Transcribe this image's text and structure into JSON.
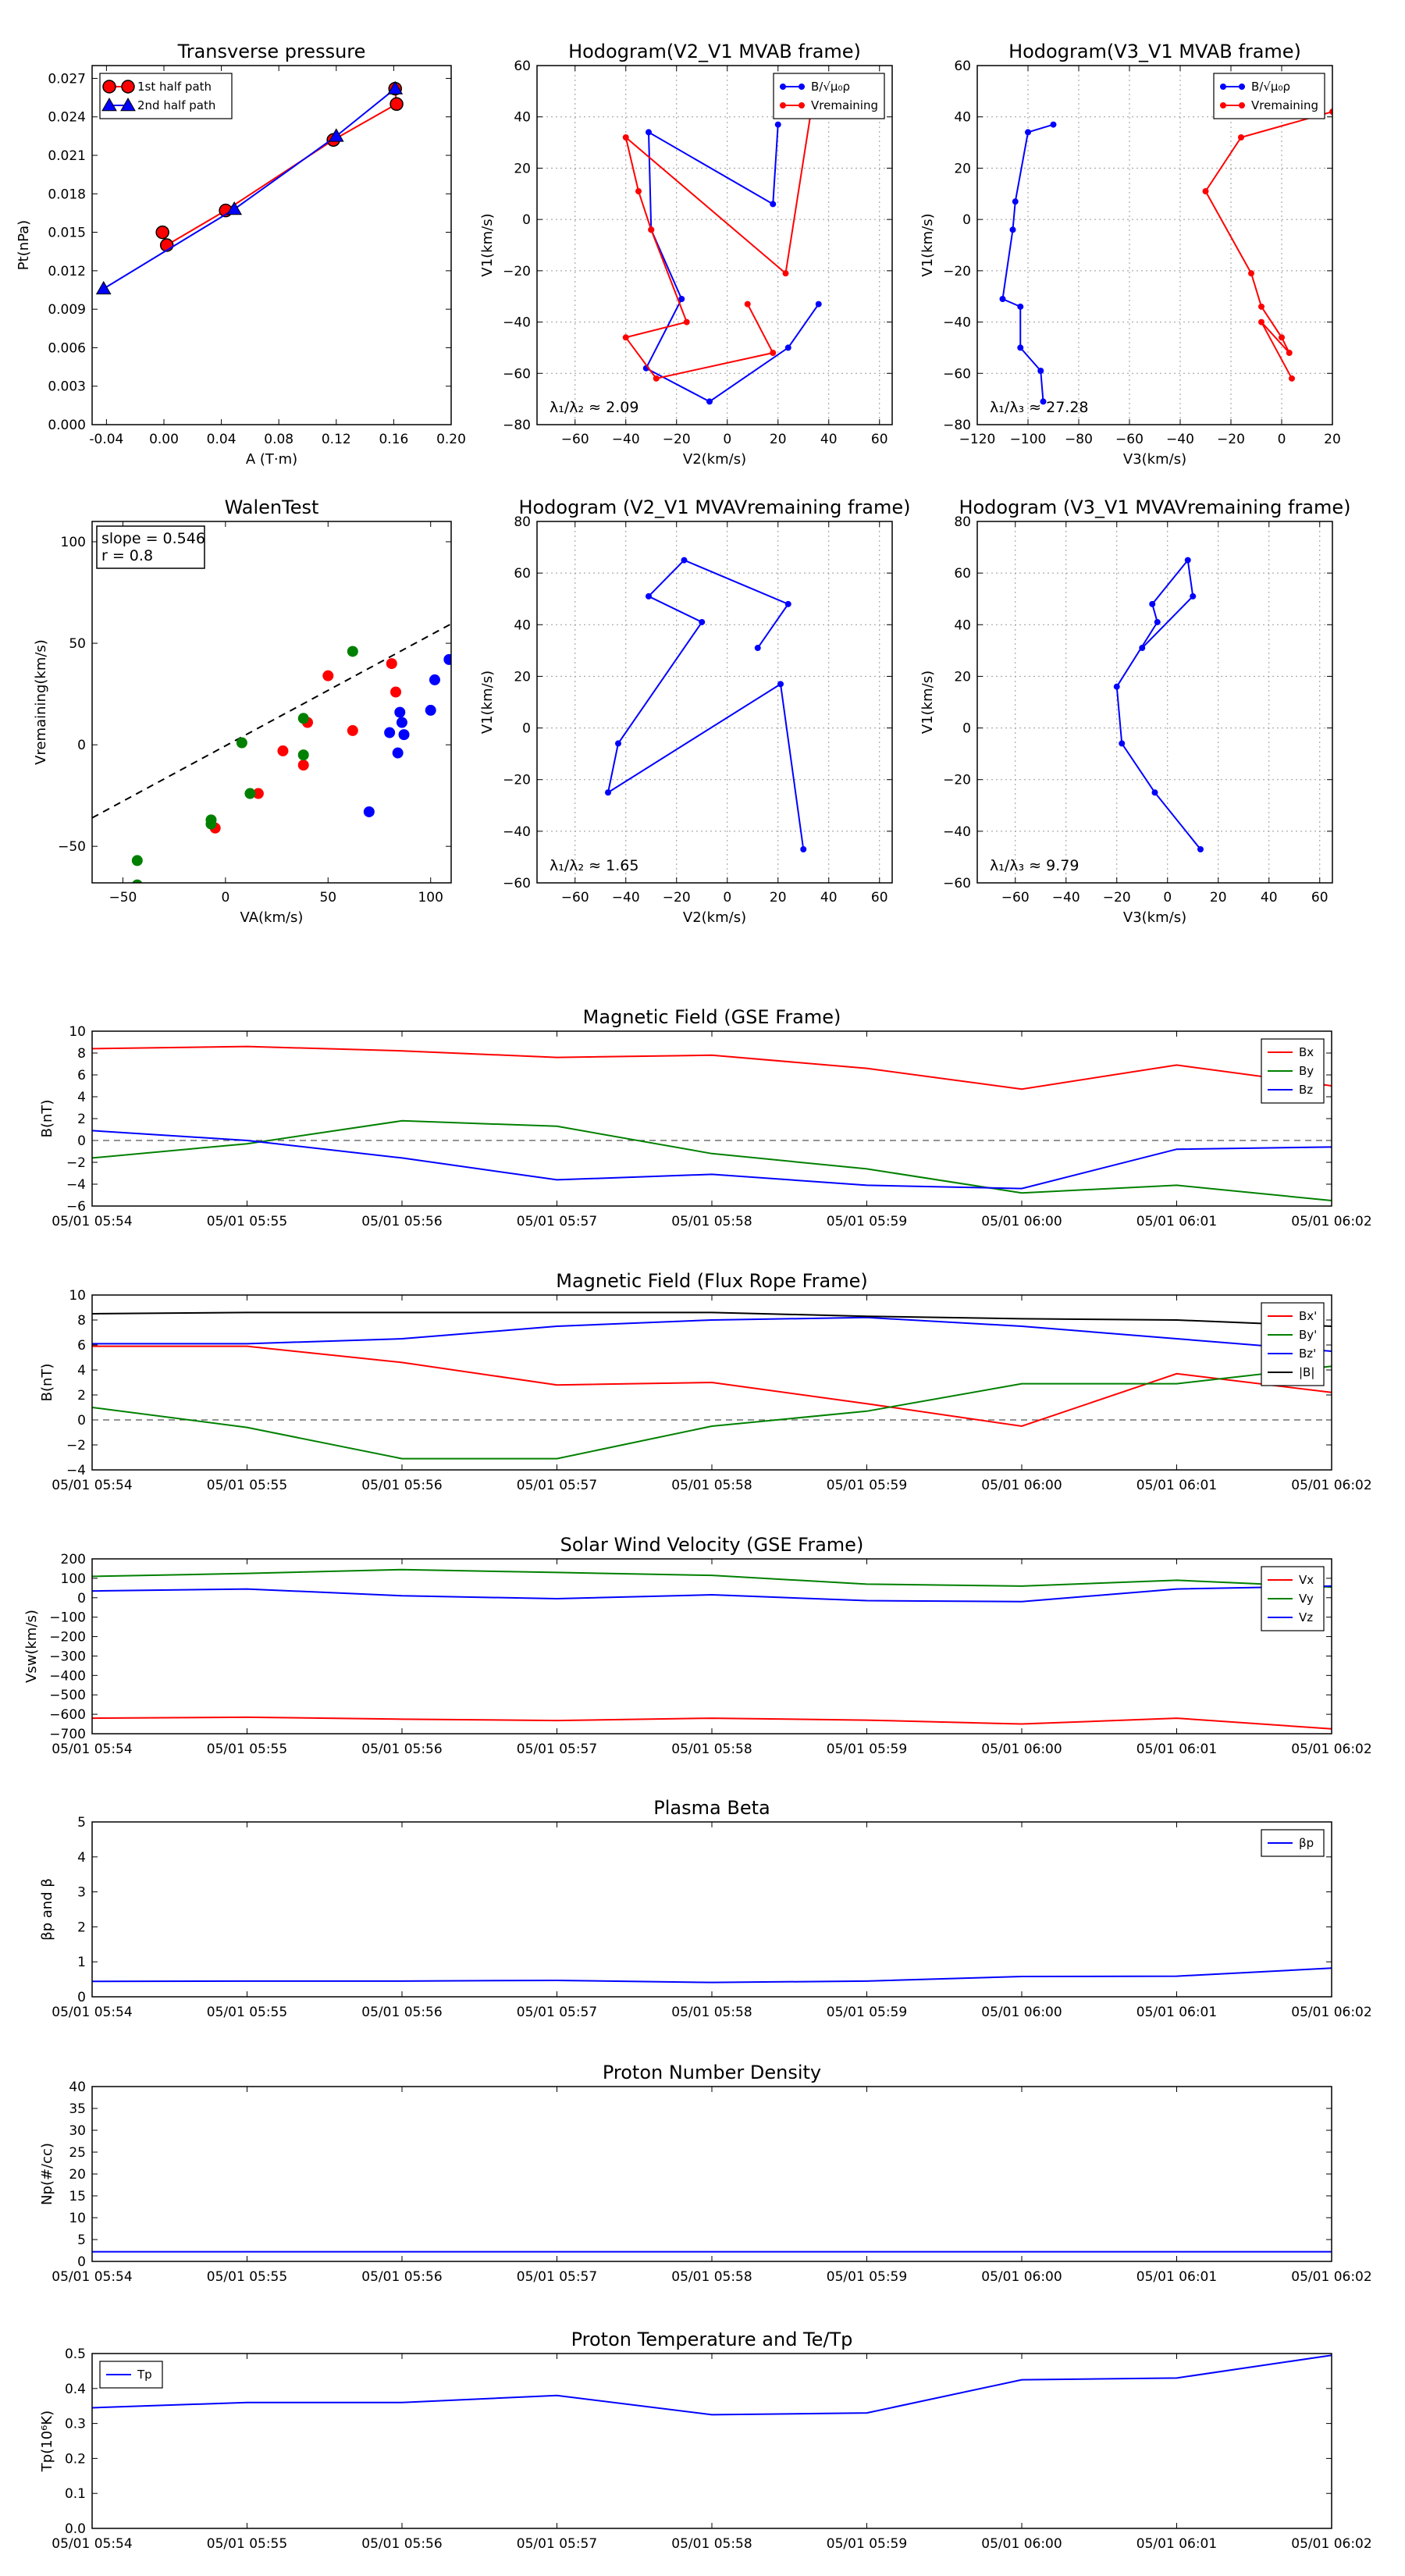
{
  "chart_data": [
    {
      "id": "tp",
      "type": "line",
      "title": "Transverse pressure",
      "xlabel": "A (T·m)",
      "ylabel": "Pt(nPa)",
      "xlim": [
        -0.05,
        0.2
      ],
      "ylim": [
        0,
        0.028
      ],
      "xticks": [
        -0.04,
        0.0,
        0.04,
        0.08,
        0.12,
        0.16,
        0.2
      ],
      "xticklabels": [
        "-0.04",
        "0.00",
        "0.04",
        "0.08",
        "0.12",
        "0.16",
        "0.20"
      ],
      "yticks": [
        0,
        0.003,
        0.006,
        0.009,
        0.012,
        0.015,
        0.018,
        0.021,
        0.024,
        0.027
      ],
      "yticklabels": [
        "0.000",
        "0.003",
        "0.006",
        "0.009",
        "0.012",
        "0.015",
        "0.018",
        "0.021",
        "0.024",
        "0.027"
      ],
      "grid": false,
      "legend": "top-left",
      "series": [
        {
          "name": "1st half path",
          "color": "#ff0000",
          "marker": "circle",
          "x": [
            -0.001,
            0.002,
            0.043,
            0.118,
            0.162,
            0.161
          ],
          "y": [
            0.015,
            0.014,
            0.0167,
            0.0222,
            0.025,
            0.0262
          ]
        },
        {
          "name": "2nd half path",
          "color": "#0000ff",
          "marker": "triangle",
          "x": [
            -0.042,
            0.049,
            0.12,
            0.161
          ],
          "y": [
            0.0106,
            0.0168,
            0.0225,
            0.0262
          ]
        }
      ]
    },
    {
      "id": "h1",
      "type": "line",
      "title": "Hodogram(V2_V1 MVAB frame)",
      "xlabel": "V2(km/s)",
      "ylabel": "V1(km/s)",
      "xlim": [
        -75,
        65
      ],
      "ylim": [
        -80,
        60
      ],
      "xticks": [
        -60,
        -40,
        -20,
        0,
        20,
        40,
        60
      ],
      "xticklabels": [
        "−60",
        "−40",
        "−20",
        "0",
        "20",
        "40",
        "60"
      ],
      "yticks": [
        -80,
        -60,
        -40,
        -20,
        0,
        20,
        40,
        60
      ],
      "yticklabels": [
        "−80",
        "−60",
        "−40",
        "−20",
        "0",
        "20",
        "40",
        "60"
      ],
      "grid": true,
      "legend": "top-right",
      "annotation": "λ₁/λ₂ ≈ 2.09",
      "series": [
        {
          "name": "B/√μ₀ρ",
          "color": "#0000ff",
          "marker": "dot",
          "x": [
            20,
            18,
            -31,
            -30,
            -18,
            -32,
            -7,
            24,
            36
          ],
          "y": [
            37,
            6,
            34,
            -4,
            -31,
            -58,
            -71,
            -50,
            -33
          ]
        },
        {
          "name": "Vremaining",
          "color": "#ff0000",
          "marker": "dot",
          "x": [
            33,
            23,
            -40,
            -35,
            -30,
            -16,
            -40,
            -28,
            18,
            8
          ],
          "y": [
            42,
            -21,
            32,
            11,
            -4,
            -40,
            -46,
            -62,
            -52,
            -33
          ]
        }
      ]
    },
    {
      "id": "h2",
      "type": "line",
      "title": "Hodogram(V3_V1 MVAB frame)",
      "xlabel": "V3(km/s)",
      "ylabel": "V1(km/s)",
      "xlim": [
        -120,
        20
      ],
      "ylim": [
        -80,
        60
      ],
      "xticks": [
        -120,
        -100,
        -80,
        -60,
        -40,
        -20,
        0,
        20
      ],
      "xticklabels": [
        "−120",
        "−100",
        "−80",
        "−60",
        "−40",
        "−20",
        "0",
        "20"
      ],
      "yticks": [
        -80,
        -60,
        -40,
        -20,
        0,
        20,
        40,
        60
      ],
      "yticklabels": [
        "−80",
        "−60",
        "−40",
        "−20",
        "0",
        "20",
        "40",
        "60"
      ],
      "grid": true,
      "legend": "top-right",
      "annotation": "λ₁/λ₃ ≈ 27.28",
      "series": [
        {
          "name": "B/√μ₀ρ",
          "color": "#0000ff",
          "marker": "dot",
          "x": [
            -90,
            -100,
            -105,
            -106,
            -110,
            -103,
            -103,
            -95,
            -94
          ],
          "y": [
            37,
            34,
            7,
            -4,
            -31,
            -34,
            -50,
            -59,
            -71
          ]
        },
        {
          "name": "Vremaining",
          "color": "#ff0000",
          "marker": "dot",
          "x": [
            20,
            -16,
            -30,
            -12,
            -8,
            0,
            3,
            -8,
            4
          ],
          "y": [
            42,
            32,
            11,
            -21,
            -34,
            -46,
            -52,
            -40,
            -62
          ]
        }
      ]
    },
    {
      "id": "walen",
      "type": "scatter",
      "title": "WalenTest",
      "xlabel": "VA(km/s)",
      "ylabel": "Vremaining(km/s)",
      "xlim": [
        -65,
        110
      ],
      "ylim": [
        -68,
        110
      ],
      "xticks": [
        -50,
        0,
        50,
        100
      ],
      "xticklabels": [
        "−50",
        "0",
        "50",
        "100"
      ],
      "yticks": [
        -50,
        0,
        50,
        100
      ],
      "yticklabels": [
        "−50",
        "0",
        "50",
        "100"
      ],
      "grid": false,
      "annotation_lines": [
        "slope = 0.546",
        "r = 0.8"
      ],
      "fit": {
        "slope": 0.546,
        "intercept": -0.5
      },
      "series": [
        {
          "color": "#0000ff",
          "x": [
            109,
            102,
            86,
            87,
            84,
            80,
            85,
            100,
            70
          ],
          "y": [
            42,
            32,
            11,
            5,
            -4,
            6,
            16,
            17,
            -33
          ]
        },
        {
          "color": "#ff0000",
          "x": [
            81,
            83,
            50,
            40,
            62,
            38,
            28,
            16,
            -5
          ],
          "y": [
            40,
            26,
            34,
            11,
            7,
            -10,
            -3,
            -24,
            -41
          ]
        },
        {
          "color": "#008000",
          "x": [
            62,
            38,
            38,
            8,
            12,
            -7,
            -7,
            -43,
            -43
          ],
          "y": [
            46,
            13,
            -5,
            1,
            -24,
            -37,
            -39,
            -57,
            -69
          ]
        }
      ]
    },
    {
      "id": "h3",
      "type": "line",
      "title": "Hodogram (V2_V1 MVAVremaining frame)",
      "xlabel": "V2(km/s)",
      "ylabel": "V1(km/s)",
      "xlim": [
        -75,
        65
      ],
      "ylim": [
        -60,
        80
      ],
      "xticks": [
        -60,
        -40,
        -20,
        0,
        20,
        40,
        60
      ],
      "xticklabels": [
        "−60",
        "−40",
        "−20",
        "0",
        "20",
        "40",
        "60"
      ],
      "yticks": [
        -60,
        -40,
        -20,
        0,
        20,
        40,
        60,
        80
      ],
      "yticklabels": [
        "−60",
        "−40",
        "−20",
        "0",
        "20",
        "40",
        "60",
        "80"
      ],
      "grid": true,
      "annotation": "λ₁/λ₂ ≈ 1.65",
      "series": [
        {
          "color": "#0000ff",
          "marker": "dot",
          "x": [
            12,
            24,
            -17,
            -31,
            -10,
            -43,
            -47,
            21,
            30
          ],
          "y": [
            31,
            48,
            65,
            51,
            41,
            -6,
            -25,
            17,
            -47
          ]
        }
      ]
    },
    {
      "id": "h4",
      "type": "line",
      "title": "Hodogram (V3_V1 MVAVremaining frame)",
      "xlabel": "V3(km/s)",
      "ylabel": "V1(km/s)",
      "xlim": [
        -75,
        65
      ],
      "ylim": [
        -60,
        80
      ],
      "xticks": [
        -60,
        -40,
        -20,
        0,
        20,
        40,
        60
      ],
      "xticklabels": [
        "−60",
        "−40",
        "−20",
        "0",
        "20",
        "40",
        "60"
      ],
      "yticks": [
        -60,
        -40,
        -20,
        0,
        20,
        40,
        60,
        80
      ],
      "yticklabels": [
        "−60",
        "−40",
        "−20",
        "0",
        "20",
        "40",
        "60",
        "80"
      ],
      "grid": true,
      "annotation": "λ₁/λ₃ ≈ 9.79",
      "series": [
        {
          "color": "#0000ff",
          "marker": "dot",
          "x": [
            -10,
            10,
            8,
            -6,
            -4,
            -20,
            -18,
            -5,
            13
          ],
          "y": [
            31,
            51,
            65,
            48,
            41,
            16,
            -6,
            -25,
            -47
          ]
        }
      ]
    },
    {
      "id": "mag_gse",
      "type": "line",
      "title": "Magnetic Field (GSE Frame)",
      "xlabel": "",
      "ylabel": "B(nT)",
      "categories": [
        "05/01 05:54",
        "05/01 05:55",
        "05/01 05:56",
        "05/01 05:57",
        "05/01 05:58",
        "05/01 05:59",
        "05/01 06:00",
        "05/01 06:01",
        "05/01 06:02"
      ],
      "ylim": [
        -6,
        10
      ],
      "yticks": [
        -6,
        -4,
        -2,
        0,
        2,
        4,
        6,
        8,
        10
      ],
      "yticklabels": [
        "−6",
        "−4",
        "−2",
        "0",
        "2",
        "4",
        "6",
        "8",
        "10"
      ],
      "zero_line": true,
      "legend": "top-right",
      "series": [
        {
          "name": "Bx",
          "color": "#ff0000",
          "values": [
            8.4,
            8.6,
            8.2,
            7.6,
            7.8,
            6.6,
            4.7,
            6.9,
            5.0
          ]
        },
        {
          "name": "By",
          "color": "#008000",
          "values": [
            -1.6,
            -0.3,
            1.8,
            1.3,
            -1.2,
            -2.6,
            -4.8,
            -4.1,
            -5.5
          ]
        },
        {
          "name": "Bz",
          "color": "#0000ff",
          "values": [
            0.9,
            0.0,
            -1.6,
            -3.6,
            -3.1,
            -4.1,
            -4.4,
            -0.8,
            -0.6
          ]
        }
      ]
    },
    {
      "id": "mag_fr",
      "type": "line",
      "title": "Magnetic Field (Flux Rope Frame)",
      "xlabel": "",
      "ylabel": "B(nT)",
      "categories": [
        "05/01 05:54",
        "05/01 05:55",
        "05/01 05:56",
        "05/01 05:57",
        "05/01 05:58",
        "05/01 05:59",
        "05/01 06:00",
        "05/01 06:01",
        "05/01 06:02"
      ],
      "ylim": [
        -4,
        10
      ],
      "yticks": [
        -4,
        -2,
        0,
        2,
        4,
        6,
        8,
        10
      ],
      "yticklabels": [
        "−4",
        "−2",
        "0",
        "2",
        "4",
        "6",
        "8",
        "10"
      ],
      "zero_line": true,
      "legend": "top-right",
      "series": [
        {
          "name": "Bx'",
          "color": "#ff0000",
          "values": [
            5.9,
            5.9,
            4.6,
            2.8,
            3.0,
            1.3,
            -0.5,
            3.7,
            2.2
          ]
        },
        {
          "name": "By'",
          "color": "#008000",
          "values": [
            1.0,
            -0.6,
            -3.1,
            -3.1,
            -0.5,
            0.7,
            2.9,
            2.9,
            4.3
          ]
        },
        {
          "name": "Bz'",
          "color": "#0000ff",
          "values": [
            6.1,
            6.1,
            6.5,
            7.5,
            8.0,
            8.2,
            7.5,
            6.5,
            5.5
          ]
        },
        {
          "name": "|B|",
          "color": "#000000",
          "values": [
            8.5,
            8.6,
            8.6,
            8.6,
            8.6,
            8.3,
            8.1,
            8.0,
            7.5
          ]
        }
      ]
    },
    {
      "id": "vsw",
      "type": "line",
      "title": "Solar Wind Velocity (GSE Frame)",
      "xlabel": "",
      "ylabel": "Vsw(km/s)",
      "categories": [
        "05/01 05:54",
        "05/01 05:55",
        "05/01 05:56",
        "05/01 05:57",
        "05/01 05:58",
        "05/01 05:59",
        "05/01 06:00",
        "05/01 06:01",
        "05/01 06:02"
      ],
      "ylim": [
        -700,
        200
      ],
      "yticks": [
        -700,
        -600,
        -500,
        -400,
        -300,
        -200,
        -100,
        0,
        100,
        200
      ],
      "yticklabels": [
        "−700",
        "−600",
        "−500",
        "−400",
        "−300",
        "−200",
        "−100",
        "0",
        "100",
        "200"
      ],
      "legend": "top-right",
      "series": [
        {
          "name": "Vx",
          "color": "#ff0000",
          "values": [
            -620,
            -615,
            -625,
            -632,
            -620,
            -630,
            -650,
            -620,
            -675
          ]
        },
        {
          "name": "Vy",
          "color": "#008000",
          "values": [
            110,
            125,
            145,
            130,
            115,
            70,
            60,
            90,
            55
          ]
        },
        {
          "name": "Vz",
          "color": "#0000ff",
          "values": [
            35,
            45,
            10,
            -5,
            15,
            -15,
            -20,
            45,
            60
          ]
        }
      ]
    },
    {
      "id": "beta",
      "type": "line",
      "title": "Plasma Beta",
      "xlabel": "",
      "ylabel": "βp and β",
      "categories": [
        "05/01 05:54",
        "05/01 05:55",
        "05/01 05:56",
        "05/01 05:57",
        "05/01 05:58",
        "05/01 05:59",
        "05/01 06:00",
        "05/01 06:01",
        "05/01 06:02"
      ],
      "ylim": [
        0,
        5
      ],
      "yticks": [
        0,
        1,
        2,
        3,
        4,
        5
      ],
      "yticklabels": [
        "0",
        "1",
        "2",
        "3",
        "4",
        "5"
      ],
      "legend": "top-right",
      "series": [
        {
          "name": "βp",
          "color": "#0000ff",
          "values": [
            0.44,
            0.45,
            0.45,
            0.47,
            0.41,
            0.45,
            0.58,
            0.59,
            0.82
          ]
        }
      ]
    },
    {
      "id": "np",
      "type": "line",
      "title": "Proton Number Density",
      "xlabel": "",
      "ylabel": "Np(#/cc)",
      "categories": [
        "05/01 05:54",
        "05/01 05:55",
        "05/01 05:56",
        "05/01 05:57",
        "05/01 05:58",
        "05/01 05:59",
        "05/01 06:00",
        "05/01 06:01",
        "05/01 06:02"
      ],
      "ylim": [
        0,
        40
      ],
      "yticks": [
        0,
        5,
        10,
        15,
        20,
        25,
        30,
        35,
        40
      ],
      "yticklabels": [
        "0",
        "5",
        "10",
        "15",
        "20",
        "25",
        "30",
        "35",
        "40"
      ],
      "series": [
        {
          "color": "#0000ff",
          "values": [
            2.2,
            2.2,
            2.2,
            2.2,
            2.2,
            2.2,
            2.2,
            2.2,
            2.2
          ]
        }
      ]
    },
    {
      "id": "temp",
      "type": "line",
      "title": "Proton Temperature and Te/Tp",
      "xlabel": "",
      "ylabel": "Tp(10⁶K)",
      "categories": [
        "05/01 05:54",
        "05/01 05:55",
        "05/01 05:56",
        "05/01 05:57",
        "05/01 05:58",
        "05/01 05:59",
        "05/01 06:00",
        "05/01 06:01",
        "05/01 06:02"
      ],
      "ylim": [
        0,
        0.5
      ],
      "yticks": [
        0,
        0.1,
        0.2,
        0.3,
        0.4,
        0.5
      ],
      "yticklabels": [
        "0.0",
        "0.1",
        "0.2",
        "0.3",
        "0.4",
        "0.5"
      ],
      "legend": "top-left",
      "series": [
        {
          "name": "Tp",
          "color": "#0000ff",
          "values": [
            0.345,
            0.36,
            0.36,
            0.38,
            0.325,
            0.33,
            0.425,
            0.43,
            0.495
          ]
        }
      ]
    }
  ]
}
